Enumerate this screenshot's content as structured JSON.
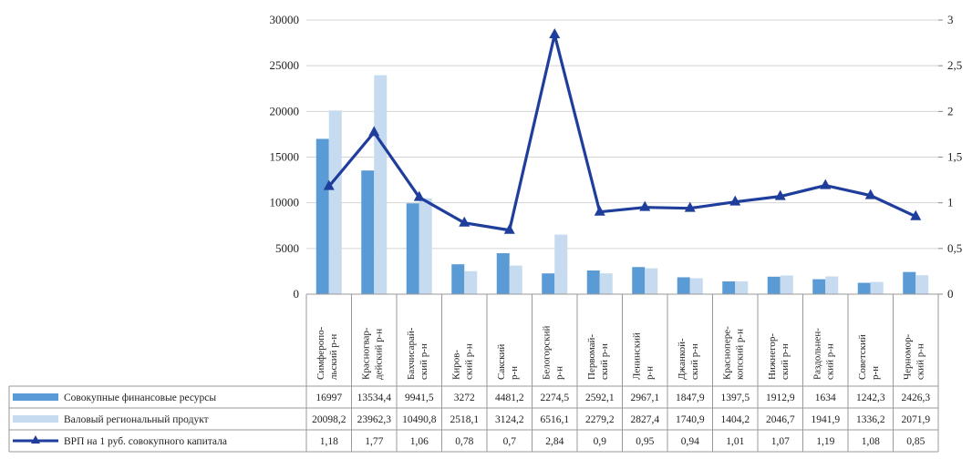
{
  "chart_data": {
    "type": "bar",
    "categories": [
      [
        "Симферопо-",
        "льский р-н"
      ],
      [
        "Красногвар-",
        "дейский р-н"
      ],
      [
        "Бахчисарай-",
        "ский р-н"
      ],
      [
        "Киров-",
        "ский р-н"
      ],
      [
        "Сакский",
        "р-н"
      ],
      [
        "Белогорский",
        "р-н"
      ],
      [
        "Первомай-",
        "ский р-н"
      ],
      [
        "Ленинский",
        "р-н"
      ],
      [
        "Джанкой-",
        "ский р-н"
      ],
      [
        "Красноперe-",
        "копский р-н"
      ],
      [
        "Нижнегор-",
        "ский р-н"
      ],
      [
        "Раздольнен-",
        "ский р-н"
      ],
      [
        "Советский",
        "р-н"
      ],
      [
        "Черномор-",
        "ский р-н"
      ]
    ],
    "series": [
      {
        "name": "Совокупные финансовые ресурсы",
        "type": "bar",
        "axis": "left",
        "color": "#5b9bd5",
        "values": [
          16997,
          13534.4,
          9941.5,
          3272,
          4481.2,
          2274.5,
          2592.1,
          2967.1,
          1847.9,
          1397.5,
          1912.9,
          1634,
          1242.3,
          2426.3
        ],
        "labels": [
          "16997",
          "13534,4",
          "9941,5",
          "3272",
          "4481,2",
          "2274,5",
          "2592,1",
          "2967,1",
          "1847,9",
          "1397,5",
          "1912,9",
          "1634",
          "1242,3",
          "2426,3"
        ]
      },
      {
        "name": "Валовый региональный продукт",
        "type": "bar",
        "axis": "left",
        "color": "#c6dbef",
        "values": [
          20098.2,
          23962.3,
          10490.8,
          2518.1,
          3124.2,
          6516.1,
          2279.2,
          2827.4,
          1740.9,
          1404.2,
          2046.7,
          1941.9,
          1336.2,
          2071.9
        ],
        "labels": [
          "20098,2",
          "23962,3",
          "10490,8",
          "2518,1",
          "3124,2",
          "6516,1",
          "2279,2",
          "2827,4",
          "1740,9",
          "1404,2",
          "2046,7",
          "1941,9",
          "1336,2",
          "2071,9"
        ]
      },
      {
        "name": "ВРП на 1 руб. совокупного капитала",
        "type": "line",
        "axis": "right",
        "color": "#1f3e9c",
        "values": [
          1.18,
          1.77,
          1.06,
          0.78,
          0.7,
          2.84,
          0.9,
          0.95,
          0.94,
          1.01,
          1.07,
          1.19,
          1.08,
          0.85
        ],
        "labels": [
          "1,18",
          "1,77",
          "1,06",
          "0,78",
          "0,7",
          "2,84",
          "0,9",
          "0,95",
          "0,94",
          "1,01",
          "1,07",
          "1,19",
          "1,08",
          "0,85"
        ]
      }
    ],
    "y_left": {
      "min": 0,
      "max": 30000,
      "ticks": [
        "0",
        "5000",
        "10000",
        "15000",
        "20000",
        "25000",
        "30000"
      ]
    },
    "y_right": {
      "min": 0,
      "max": 3,
      "ticks": [
        "0",
        "0,5",
        "1",
        "1,5",
        "2",
        "2,5",
        "3"
      ]
    },
    "grid": true,
    "legend": "data-table-rows"
  }
}
